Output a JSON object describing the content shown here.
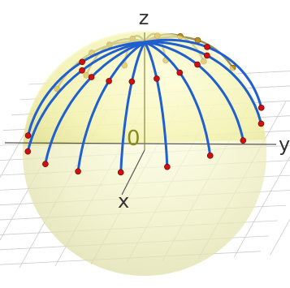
{
  "axes": {
    "x": "x",
    "y": "y",
    "z": "z",
    "origin": "0"
  }
}
